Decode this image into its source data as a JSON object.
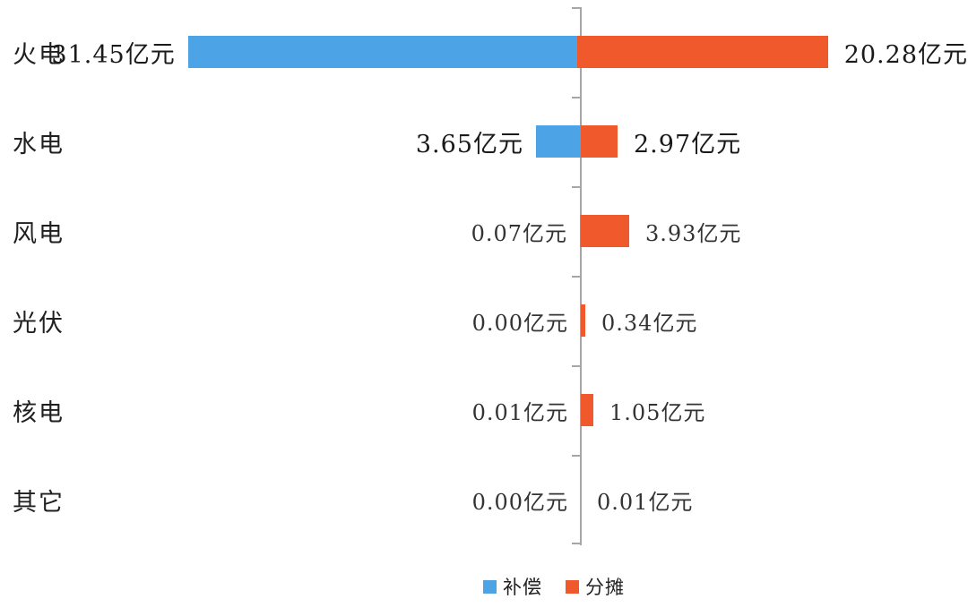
{
  "chart_data": {
    "type": "bar",
    "variant": "diverging-horizontal",
    "unit": "亿元",
    "background": "#FFFFFF",
    "categories": [
      "火电",
      "水电",
      "风电",
      "光伏",
      "核电",
      "其它"
    ],
    "series": [
      {
        "name": "补偿",
        "side": "left",
        "color": "#4CA4E6",
        "values": [
          31.45,
          3.65,
          0.07,
          0.0,
          0.01,
          0.0
        ],
        "labels": [
          "31.45亿元",
          "3.65亿元",
          "0.07亿元",
          "0.00亿元",
          "0.01亿元",
          "0.00亿元"
        ]
      },
      {
        "name": "分摊",
        "side": "right",
        "color": "#F0592B",
        "values": [
          20.28,
          2.97,
          3.93,
          0.34,
          1.05,
          0.01
        ],
        "labels": [
          "20.28亿元",
          "2.97亿元",
          "3.93亿元",
          "0.34亿元",
          "1.05亿元",
          "0.01亿元"
        ]
      }
    ],
    "legend": [
      {
        "label": "补偿",
        "color": "#4CA4E6"
      },
      {
        "label": "分摊",
        "color": "#F0592B"
      }
    ],
    "axis": {
      "orientation": "vertical",
      "color": "#A6A6A6",
      "grid": false,
      "ticks": 7
    }
  }
}
